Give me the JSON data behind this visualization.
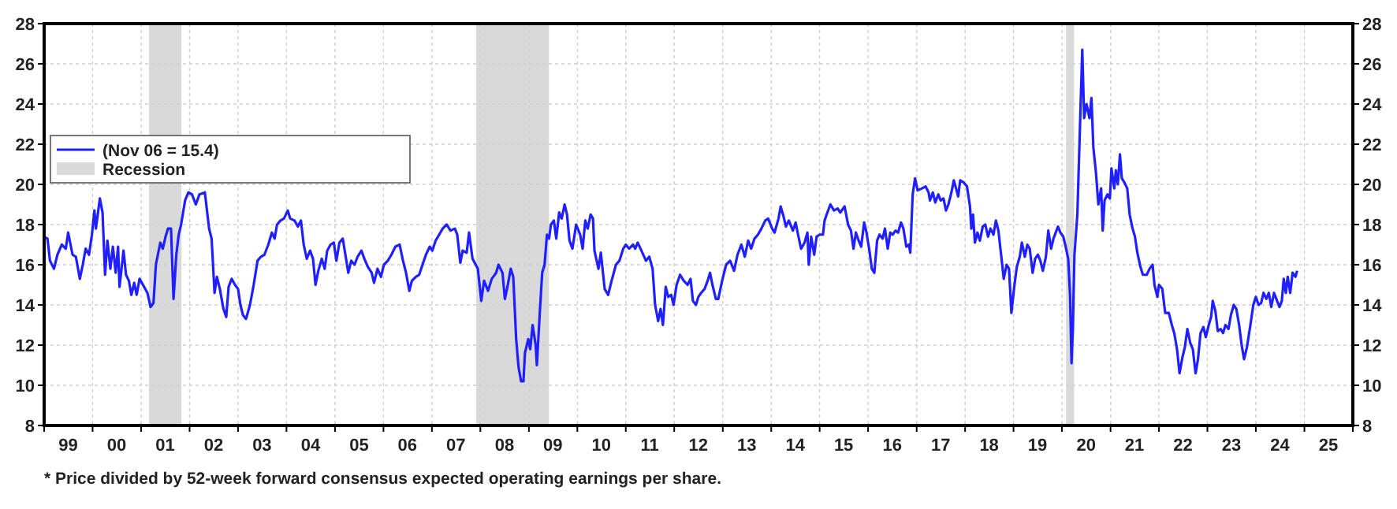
{
  "chart_data": {
    "type": "line",
    "x": [
      "1999-01-01",
      "1999-01-26",
      "1999-02-14",
      "1999-03-16",
      "1999-04-11",
      "1999-05-14",
      "1999-06-13",
      "1999-07-01",
      "1999-08-03",
      "1999-08-28",
      "1999-09-27",
      "1999-10-19",
      "1999-11-10",
      "1999-12-05",
      "1999-12-27",
      "2000-01-15",
      "2000-01-26",
      "2000-02-25",
      "2000-03-16",
      "2000-04-04",
      "2000-04-22",
      "2000-05-14",
      "2000-06-02",
      "2000-06-23",
      "2000-07-11",
      "2000-07-22",
      "2000-08-21",
      "2000-09-09",
      "2000-10-01",
      "2000-10-19",
      "2000-11-10",
      "2000-11-28",
      "2000-12-20",
      "2001-01-15",
      "2001-02-17",
      "2001-03-13",
      "2001-04-04",
      "2001-04-22",
      "2001-05-25",
      "2001-06-13",
      "2001-07-04",
      "2001-07-22",
      "2001-08-14",
      "2001-09-02",
      "2001-09-23",
      "2001-10-11",
      "2001-10-29",
      "2001-11-28",
      "2001-12-23",
      "2002-01-19",
      "2002-02-17",
      "2002-03-16",
      "2002-04-26",
      "2002-05-28",
      "2002-06-16",
      "2002-07-08",
      "2002-07-26",
      "2002-08-17",
      "2002-09-13",
      "2002-10-04",
      "2002-10-22",
      "2002-11-14",
      "2002-12-09",
      "2003-01-01",
      "2003-01-19",
      "2003-02-07",
      "2003-03-02",
      "2003-04-01",
      "2003-04-29",
      "2003-05-28",
      "2003-06-23",
      "2003-07-19",
      "2003-08-17",
      "2003-09-13",
      "2003-10-04",
      "2003-10-22",
      "2003-11-17",
      "2003-12-13",
      "2004-01-11",
      "2004-01-29",
      "2004-03-02",
      "2004-03-27",
      "2004-04-19",
      "2004-05-10",
      "2004-06-02",
      "2004-06-27",
      "2004-07-19",
      "2004-08-07",
      "2004-08-28",
      "2004-09-23",
      "2004-10-15",
      "2004-11-03",
      "2004-11-28",
      "2004-12-23",
      "2005-01-11",
      "2005-02-03",
      "2005-02-28",
      "2005-03-20",
      "2005-04-11",
      "2005-05-03",
      "2005-05-28",
      "2005-06-20",
      "2005-07-19",
      "2005-08-10",
      "2005-09-05",
      "2005-10-04",
      "2005-10-22",
      "2005-11-17",
      "2005-12-13",
      "2006-01-04",
      "2006-02-03",
      "2006-03-02",
      "2006-04-01",
      "2006-05-03",
      "2006-05-28",
      "2006-06-20",
      "2006-07-15",
      "2006-08-03",
      "2006-09-02",
      "2006-09-27",
      "2006-10-22",
      "2006-11-17",
      "2006-12-16",
      "2007-01-04",
      "2007-01-29",
      "2007-02-25",
      "2007-03-23",
      "2007-04-22",
      "2007-05-21",
      "2007-06-23",
      "2007-07-11",
      "2007-08-03",
      "2007-08-21",
      "2007-09-20",
      "2007-10-08",
      "2007-11-03",
      "2007-12-13",
      "2008-01-08",
      "2008-01-29",
      "2008-02-28",
      "2008-03-27",
      "2008-04-29",
      "2008-05-17",
      "2008-06-16",
      "2008-07-04",
      "2008-07-26",
      "2008-08-17",
      "2008-09-05",
      "2008-09-27",
      "2008-10-15",
      "2008-11-03",
      "2008-11-21",
      "2008-12-02",
      "2008-12-27",
      "2009-01-11",
      "2009-01-29",
      "2009-02-21",
      "2009-03-02",
      "2009-03-23",
      "2009-04-11",
      "2009-04-29",
      "2009-05-17",
      "2009-06-02",
      "2009-06-16",
      "2009-07-08",
      "2009-07-26",
      "2009-08-17",
      "2009-09-05",
      "2009-09-27",
      "2009-10-15",
      "2009-11-03",
      "2009-11-25",
      "2009-12-23",
      "2010-01-22",
      "2010-02-10",
      "2010-03-02",
      "2010-03-20",
      "2010-04-11",
      "2010-04-29",
      "2010-05-10",
      "2010-06-09",
      "2010-06-27",
      "2010-07-26",
      "2010-08-21",
      "2010-09-16",
      "2010-10-19",
      "2010-11-14",
      "2010-12-13",
      "2011-01-01",
      "2011-01-26",
      "2011-02-25",
      "2011-03-13",
      "2011-04-01",
      "2011-04-29",
      "2011-06-02",
      "2011-06-27",
      "2011-07-22",
      "2011-08-10",
      "2011-09-02",
      "2011-09-20",
      "2011-10-08",
      "2011-10-29",
      "2011-11-17",
      "2011-12-09",
      "2011-12-27",
      "2012-01-19",
      "2012-02-14",
      "2012-03-13",
      "2012-04-11",
      "2012-05-03",
      "2012-05-21",
      "2012-06-13",
      "2012-07-01",
      "2012-07-22",
      "2012-08-17",
      "2012-09-09",
      "2012-09-27",
      "2012-10-15",
      "2012-11-10",
      "2012-11-28",
      "2012-12-27",
      "2013-01-26",
      "2013-02-25",
      "2013-03-27",
      "2013-04-22",
      "2013-05-21",
      "2013-06-16",
      "2013-07-11",
      "2013-08-03",
      "2013-08-28",
      "2013-09-23",
      "2013-10-19",
      "2013-11-17",
      "2013-12-09",
      "2014-01-08",
      "2014-01-26",
      "2014-02-25",
      "2014-03-13",
      "2014-04-04",
      "2014-04-22",
      "2014-05-14",
      "2014-06-13",
      "2014-07-04",
      "2014-07-22",
      "2014-08-14",
      "2014-09-09",
      "2014-10-01",
      "2014-10-11",
      "2014-10-29",
      "2014-11-21",
      "2014-12-09",
      "2015-01-01",
      "2015-01-26",
      "2015-02-07",
      "2015-02-28",
      "2015-03-23",
      "2015-04-19",
      "2015-05-17",
      "2015-06-05",
      "2015-07-08",
      "2015-08-03",
      "2015-08-25",
      "2015-09-13",
      "2015-10-01",
      "2015-10-22",
      "2015-11-10",
      "2015-12-02",
      "2015-12-20",
      "2016-01-11",
      "2016-01-29",
      "2016-02-17",
      "2016-03-09",
      "2016-03-27",
      "2016-04-19",
      "2016-05-07",
      "2016-05-28",
      "2016-06-16",
      "2016-07-04",
      "2016-07-26",
      "2016-08-14",
      "2016-09-05",
      "2016-09-23",
      "2016-10-15",
      "2016-11-03",
      "2016-11-14",
      "2016-12-02",
      "2016-12-20",
      "2017-01-08",
      "2017-02-10",
      "2017-03-09",
      "2017-04-01",
      "2017-04-11",
      "2017-05-03",
      "2017-05-21",
      "2017-06-13",
      "2017-07-01",
      "2017-07-22",
      "2017-08-10",
      "2017-08-28",
      "2017-09-20",
      "2017-10-08",
      "2017-10-29",
      "2017-11-10",
      "2017-11-25",
      "2017-12-20",
      "2018-01-15",
      "2018-02-07",
      "2018-02-17",
      "2018-03-02",
      "2018-03-16",
      "2018-04-04",
      "2018-04-22",
      "2018-05-14",
      "2018-06-02",
      "2018-06-23",
      "2018-07-11",
      "2018-08-03",
      "2018-08-21",
      "2018-09-09",
      "2018-10-01",
      "2018-10-19",
      "2018-11-10",
      "2018-11-28",
      "2018-12-16",
      "2019-01-08",
      "2019-01-26",
      "2019-02-17",
      "2019-03-05",
      "2019-03-27",
      "2019-04-15",
      "2019-05-03",
      "2019-05-25",
      "2019-06-13",
      "2019-07-04",
      "2019-07-22",
      "2019-08-10",
      "2019-09-02",
      "2019-09-20",
      "2019-10-11",
      "2019-10-29",
      "2019-12-02",
      "2019-12-20",
      "2020-01-11",
      "2020-01-29",
      "2020-02-17",
      "2020-03-02",
      "2020-03-13",
      "2020-03-23",
      "2020-04-04",
      "2020-04-26",
      "2020-05-14",
      "2020-06-02",
      "2020-06-16",
      "2020-07-04",
      "2020-07-26",
      "2020-08-10",
      "2020-08-25",
      "2020-09-13",
      "2020-10-01",
      "2020-10-22",
      "2020-11-03",
      "2020-11-17",
      "2020-12-09",
      "2020-12-27",
      "2021-01-08",
      "2021-01-29",
      "2021-02-10",
      "2021-02-25",
      "2021-03-13",
      "2021-03-27",
      "2021-04-15",
      "2021-05-07",
      "2021-05-25",
      "2021-06-16",
      "2021-07-04",
      "2021-07-22",
      "2021-08-14",
      "2021-09-02",
      "2021-10-01",
      "2021-10-22",
      "2021-11-14",
      "2021-11-28",
      "2021-12-20",
      "2022-01-01",
      "2022-01-26",
      "2022-02-17",
      "2022-03-16",
      "2022-04-08",
      "2022-04-26",
      "2022-05-17",
      "2022-06-05",
      "2022-06-27",
      "2022-07-15",
      "2022-08-03",
      "2022-08-25",
      "2022-09-13",
      "2022-10-04",
      "2022-10-22",
      "2022-11-10",
      "2022-12-02",
      "2022-12-20",
      "2023-01-11",
      "2023-01-29",
      "2023-02-10",
      "2023-03-02",
      "2023-03-20",
      "2023-04-11",
      "2023-04-29",
      "2023-05-17",
      "2023-06-09",
      "2023-06-27",
      "2023-07-19",
      "2023-08-07",
      "2023-08-28",
      "2023-09-16",
      "2023-10-04",
      "2023-10-26",
      "2023-11-21",
      "2023-12-13",
      "2024-01-01",
      "2024-01-22",
      "2024-02-10",
      "2024-02-28",
      "2024-03-20",
      "2024-04-08",
      "2024-04-26",
      "2024-05-17",
      "2024-06-09",
      "2024-06-27",
      "2024-07-15",
      "2024-07-29",
      "2024-08-14",
      "2024-08-28",
      "2024-09-16",
      "2024-10-04",
      "2024-10-26",
      "2024-11-07"
    ],
    "series": [
      {
        "name": "(Nov 06 = 15.4)",
        "color": "#1f1fff",
        "values": [
          17.4,
          17.3,
          16.2,
          15.8,
          16.5,
          17.0,
          16.8,
          17.6,
          16.5,
          16.4,
          15.3,
          16.0,
          16.8,
          16.5,
          17.5,
          18.7,
          17.8,
          19.3,
          18.6,
          15.5,
          17.2,
          15.8,
          16.9,
          15.6,
          16.9,
          14.9,
          16.7,
          15.5,
          15.2,
          14.5,
          15.1,
          14.5,
          15.3,
          15.0,
          14.6,
          13.9,
          14.1,
          16.0,
          17.1,
          16.8,
          17.4,
          17.8,
          17.8,
          14.3,
          16.5,
          17.5,
          18.0,
          19.2,
          19.6,
          19.5,
          19.0,
          19.5,
          19.6,
          17.8,
          17.3,
          14.6,
          15.4,
          14.8,
          13.8,
          13.4,
          14.9,
          15.3,
          15.0,
          14.8,
          14.0,
          13.5,
          13.3,
          14.0,
          15.0,
          16.2,
          16.4,
          16.5,
          17.0,
          17.6,
          17.3,
          18.0,
          18.2,
          18.3,
          18.7,
          18.3,
          18.2,
          17.9,
          18.2,
          17.0,
          16.3,
          16.7,
          16.3,
          15.0,
          15.7,
          16.3,
          15.8,
          16.7,
          17.0,
          17.1,
          16.2,
          17.1,
          17.3,
          16.5,
          15.6,
          16.2,
          16.0,
          16.4,
          16.7,
          16.3,
          15.9,
          15.6,
          15.1,
          15.8,
          15.4,
          16.0,
          16.2,
          16.5,
          16.9,
          17.0,
          16.2,
          15.6,
          14.7,
          15.2,
          15.4,
          15.5,
          16.0,
          16.5,
          16.9,
          16.7,
          17.2,
          17.5,
          17.8,
          18.0,
          17.7,
          17.8,
          17.5,
          16.1,
          16.7,
          16.6,
          17.6,
          16.3,
          15.8,
          14.2,
          15.2,
          14.7,
          15.3,
          15.6,
          16.0,
          15.6,
          14.3,
          15.0,
          15.8,
          15.4,
          12.3,
          10.9,
          10.2,
          10.2,
          11.6,
          12.3,
          11.8,
          13.0,
          12.0,
          11.0,
          13.5,
          15.6,
          16.0,
          17.5,
          17.3,
          18.0,
          18.2,
          17.3,
          18.6,
          18.3,
          19.0,
          18.5,
          17.2,
          16.8,
          18.0,
          17.5,
          16.8,
          18.2,
          17.8,
          18.5,
          18.3,
          16.7,
          15.8,
          16.6,
          14.8,
          14.5,
          15.2,
          16.0,
          16.2,
          16.8,
          17.0,
          16.8,
          17.0,
          16.8,
          17.1,
          16.7,
          16.2,
          16.4,
          15.8,
          14.0,
          13.2,
          13.8,
          13.0,
          14.9,
          14.4,
          14.5,
          14.0,
          15.0,
          15.5,
          15.2,
          15.0,
          15.3,
          14.2,
          14.0,
          14.4,
          14.6,
          14.8,
          15.2,
          15.6,
          15.0,
          14.3,
          14.3,
          15.2,
          16.0,
          16.2,
          15.7,
          16.5,
          17.0,
          16.4,
          17.2,
          16.8,
          17.3,
          17.5,
          17.8,
          18.2,
          18.3,
          17.8,
          17.6,
          18.3,
          18.9,
          18.4,
          17.9,
          18.2,
          17.7,
          18.1,
          17.5,
          16.8,
          17.1,
          17.6,
          16.0,
          17.4,
          16.5,
          17.4,
          17.5,
          17.5,
          18.2,
          18.6,
          19.0,
          18.7,
          18.8,
          18.6,
          18.9,
          18.0,
          17.7,
          16.8,
          17.6,
          17.2,
          16.9,
          18.1,
          17.6,
          16.7,
          15.8,
          15.6,
          17.2,
          17.5,
          17.3,
          17.8,
          16.8,
          17.6,
          17.5,
          17.7,
          17.6,
          18.1,
          17.8,
          16.9,
          17.0,
          16.6,
          19.5,
          20.3,
          19.7,
          19.8,
          19.9,
          19.6,
          19.2,
          19.6,
          19.1,
          19.5,
          19.2,
          19.3,
          18.7,
          19.0,
          19.6,
          20.2,
          19.7,
          19.4,
          20.2,
          20.1,
          19.9,
          18.9,
          17.8,
          18.5,
          17.1,
          17.6,
          17.2,
          17.9,
          18.0,
          17.4,
          17.8,
          17.5,
          18.2,
          17.7,
          16.4,
          15.3,
          16.0,
          15.8,
          13.6,
          15.0,
          15.9,
          16.4,
          17.1,
          16.4,
          17.0,
          16.8,
          15.6,
          16.3,
          16.5,
          16.2,
          15.7,
          16.4,
          17.7,
          16.8,
          17.3,
          17.9,
          17.6,
          17.4,
          16.9,
          16.3,
          14.5,
          11.1,
          12.8,
          16.5,
          18.5,
          22.5,
          26.7,
          23.3,
          24.0,
          23.3,
          24.3,
          21.8,
          20.6,
          19.0,
          19.8,
          17.7,
          19.2,
          19.5,
          19.3,
          20.8,
          19.8,
          20.7,
          20.0,
          21.5,
          20.3,
          20.1,
          19.8,
          18.5,
          17.8,
          17.4,
          16.6,
          15.9,
          15.5,
          15.5,
          15.8,
          16.0,
          15.0,
          14.4,
          15.0,
          14.8,
          13.6,
          13.6,
          13.0,
          12.6,
          11.8,
          10.6,
          11.4,
          11.9,
          12.8,
          12.1,
          11.8,
          10.6,
          11.3,
          12.6,
          12.9,
          12.4,
          13.0,
          13.4,
          14.2,
          13.7,
          12.7,
          12.8,
          12.6,
          13.0,
          12.8,
          13.5,
          14.0,
          13.8,
          13.0,
          12.0,
          11.3,
          11.9,
          13.0,
          14.0,
          14.4,
          14.0,
          14.1,
          14.6,
          14.3,
          14.6,
          13.9,
          14.6,
          14.2,
          13.9,
          14.2,
          15.3,
          14.6,
          15.4,
          14.6,
          15.6,
          15.4,
          15.7
        ]
      }
    ],
    "xlim": [
      "1999-01-01",
      "2026-01-01"
    ],
    "xticks": [
      {
        "value": "1999-01-01",
        "label": null
      },
      {
        "value": "1999-07-01",
        "label": "99"
      },
      {
        "value": "2000-01-01",
        "label": null
      },
      {
        "value": "2000-07-01",
        "label": "00"
      },
      {
        "value": "2001-01-01",
        "label": null
      },
      {
        "value": "2001-07-01",
        "label": "01"
      },
      {
        "value": "2002-01-01",
        "label": null
      },
      {
        "value": "2002-07-01",
        "label": "02"
      },
      {
        "value": "2003-01-01",
        "label": null
      },
      {
        "value": "2003-07-01",
        "label": "03"
      },
      {
        "value": "2004-01-01",
        "label": null
      },
      {
        "value": "2004-07-01",
        "label": "04"
      },
      {
        "value": "2005-01-01",
        "label": null
      },
      {
        "value": "2005-07-01",
        "label": "05"
      },
      {
        "value": "2006-01-01",
        "label": null
      },
      {
        "value": "2006-07-01",
        "label": "06"
      },
      {
        "value": "2007-01-01",
        "label": null
      },
      {
        "value": "2007-07-01",
        "label": "07"
      },
      {
        "value": "2008-01-01",
        "label": null
      },
      {
        "value": "2008-07-01",
        "label": "08"
      },
      {
        "value": "2009-01-01",
        "label": null
      },
      {
        "value": "2009-07-01",
        "label": "09"
      },
      {
        "value": "2010-01-01",
        "label": null
      },
      {
        "value": "2010-07-01",
        "label": "10"
      },
      {
        "value": "2011-01-01",
        "label": null
      },
      {
        "value": "2011-07-01",
        "label": "11"
      },
      {
        "value": "2012-01-01",
        "label": null
      },
      {
        "value": "2012-07-01",
        "label": "12"
      },
      {
        "value": "2013-01-01",
        "label": null
      },
      {
        "value": "2013-07-01",
        "label": "13"
      },
      {
        "value": "2014-01-01",
        "label": null
      },
      {
        "value": "2014-07-01",
        "label": "14"
      },
      {
        "value": "2015-01-01",
        "label": null
      },
      {
        "value": "2015-07-01",
        "label": "15"
      },
      {
        "value": "2016-01-01",
        "label": null
      },
      {
        "value": "2016-07-01",
        "label": "16"
      },
      {
        "value": "2017-01-01",
        "label": null
      },
      {
        "value": "2017-07-01",
        "label": "17"
      },
      {
        "value": "2018-01-01",
        "label": null
      },
      {
        "value": "2018-07-01",
        "label": "18"
      },
      {
        "value": "2019-01-01",
        "label": null
      },
      {
        "value": "2019-07-01",
        "label": "19"
      },
      {
        "value": "2020-01-01",
        "label": null
      },
      {
        "value": "2020-07-01",
        "label": "20"
      },
      {
        "value": "2021-01-01",
        "label": null
      },
      {
        "value": "2021-07-01",
        "label": "21"
      },
      {
        "value": "2022-01-01",
        "label": null
      },
      {
        "value": "2022-07-01",
        "label": "22"
      },
      {
        "value": "2023-01-01",
        "label": null
      },
      {
        "value": "2023-07-01",
        "label": "23"
      },
      {
        "value": "2024-01-01",
        "label": null
      },
      {
        "value": "2024-07-01",
        "label": "24"
      },
      {
        "value": "2025-01-01",
        "label": null
      },
      {
        "value": "2025-07-01",
        "label": "25"
      },
      {
        "value": "2026-01-01",
        "label": null
      }
    ],
    "ylim": [
      8,
      28
    ],
    "yticks": [
      8,
      10,
      12,
      14,
      16,
      18,
      20,
      22,
      24,
      26,
      28
    ],
    "y2lim": [
      8,
      28
    ],
    "y2ticks": [
      8,
      10,
      12,
      14,
      16,
      18,
      20,
      22,
      24,
      26,
      28
    ],
    "bands": [
      {
        "axis": "x",
        "from": "2001-03-01",
        "to": "2001-11-01",
        "label": "Recession",
        "color": "#d9d9d9"
      },
      {
        "axis": "x",
        "from": "2007-12-01",
        "to": "2009-06-01",
        "color": "#d9d9d9"
      },
      {
        "axis": "x",
        "from": "2020-02-01",
        "to": "2020-04-01",
        "color": "#d9d9d9"
      }
    ],
    "grid": true,
    "legend": "top left",
    "line_style": "solid",
    "marker": "none",
    "annotations": [
      "* Price divided by 52-week forward consensus expected operating earnings per share."
    ]
  }
}
